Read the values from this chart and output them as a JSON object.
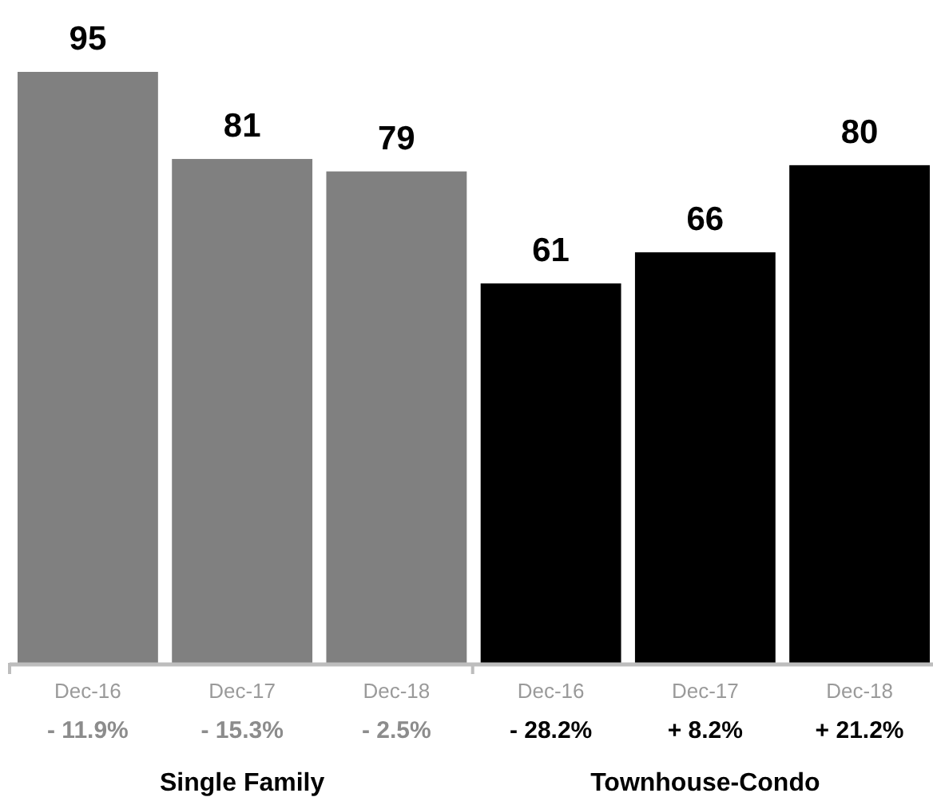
{
  "chart_data": {
    "type": "bar",
    "categories": [
      "Dec-16",
      "Dec-17",
      "Dec-18",
      "Dec-16",
      "Dec-17",
      "Dec-18"
    ],
    "values": [
      95,
      81,
      79,
      61,
      66,
      80
    ],
    "colors": [
      "#808080",
      "#808080",
      "#808080",
      "#000000",
      "#000000",
      "#000000"
    ],
    "data_labels": true,
    "annotations": [
      "- 11.9%",
      "- 15.3%",
      "- 2.5%",
      "- 28.2%",
      "+ 8.2%",
      "+ 21.2%",
      "Single Family",
      "Townhouse-Condo"
    ]
  }
}
